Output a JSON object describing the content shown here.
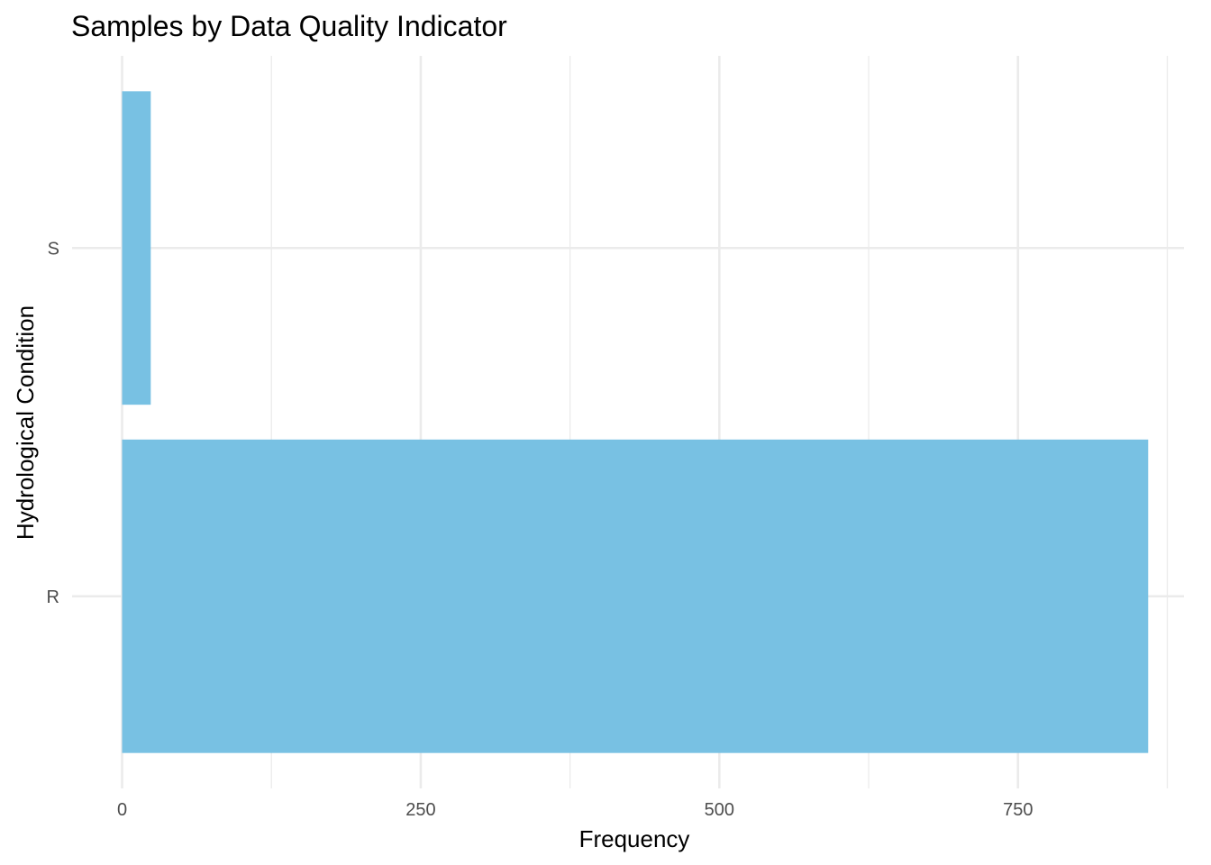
{
  "chart_data": {
    "type": "bar",
    "orientation": "horizontal",
    "title": "Samples by Data Quality Indicator",
    "xlabel": "Frequency",
    "ylabel": "Hydrological Condition",
    "categories": [
      "R",
      "S"
    ],
    "values": [
      859,
      24
    ],
    "xlim": [
      0,
      875
    ],
    "xticks": [
      0,
      250,
      500,
      750
    ],
    "xtick_labels": [
      "0",
      "250",
      "500",
      "750"
    ],
    "grid": true,
    "legend": "none",
    "colors": {
      "bar": "#78c1e3",
      "grid": "#ebebeb",
      "tick_text": "#4d4d4d",
      "text": "#000000",
      "background": "#ffffff"
    }
  }
}
